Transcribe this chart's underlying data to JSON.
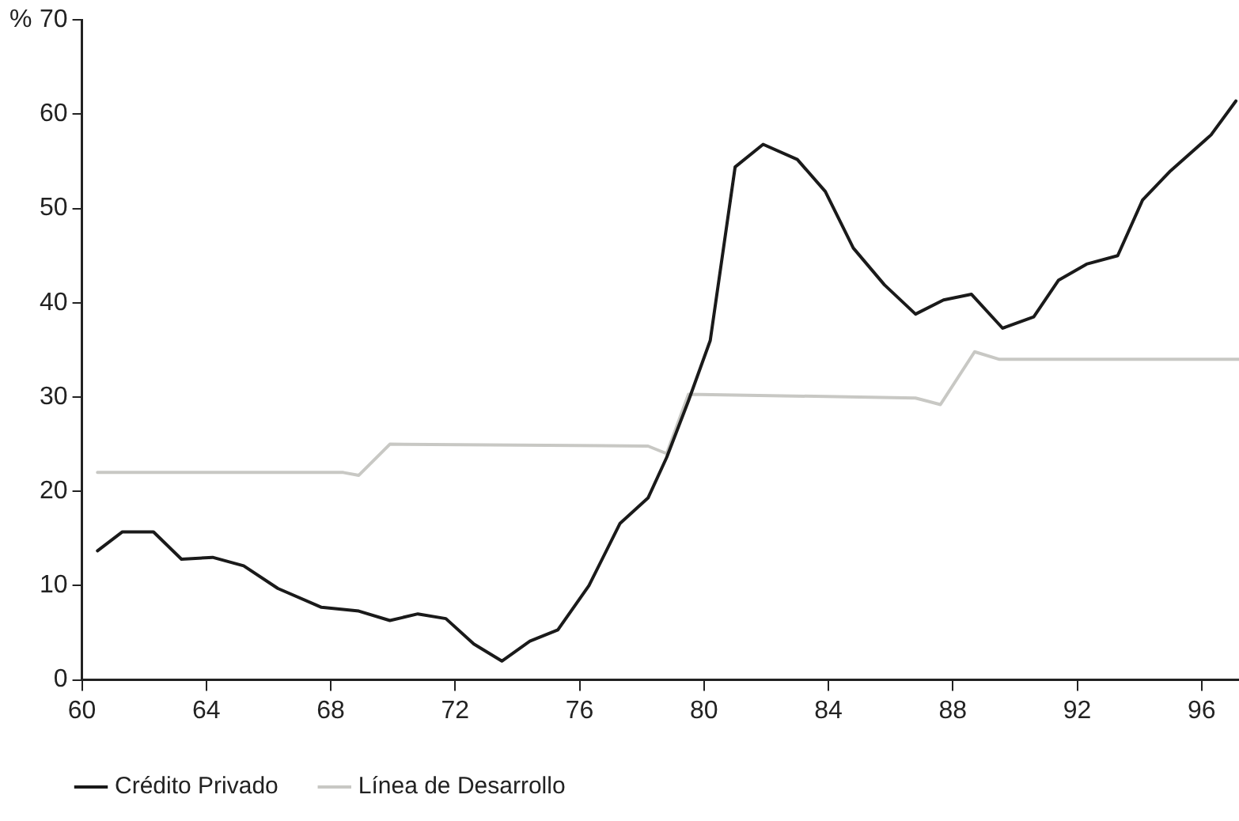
{
  "chart_data": {
    "type": "line",
    "ylabel": "%",
    "xlim": [
      60,
      97.2
    ],
    "xticks": [
      60,
      64,
      68,
      72,
      76,
      80,
      84,
      88,
      92,
      96
    ],
    "ylim": [
      0,
      70
    ],
    "yticks": [
      0,
      10,
      20,
      30,
      40,
      50,
      60,
      70
    ],
    "grid": false,
    "legend": "bottom left",
    "marker": "none",
    "line_style": "solid",
    "series": [
      {
        "name": "Crédito Privado",
        "color": "#1a1a1a",
        "x": [
          60.5,
          61.3,
          62.3,
          63.2,
          64.2,
          65.2,
          66.3,
          67.7,
          68.9,
          69.9,
          70.8,
          71.7,
          72.6,
          73.5,
          74.4,
          75.3,
          76.3,
          77.3,
          78.2,
          78.8,
          79.5,
          80.2,
          81.0,
          81.9,
          83.0,
          83.9,
          84.8,
          85.8,
          86.8,
          87.7,
          88.6,
          89.6,
          90.6,
          91.4,
          92.3,
          93.3,
          94.1,
          95.0,
          96.3,
          97.1
        ],
        "values": [
          13.7,
          15.7,
          15.7,
          12.8,
          13,
          12.1,
          9.7,
          7.7,
          7.3,
          6.3,
          7,
          6.5,
          3.8,
          2,
          4.1,
          5.3,
          10,
          16.6,
          19.3,
          23.6,
          29.6,
          36,
          54.4,
          56.8,
          55.2,
          51.8,
          45.8,
          41.9,
          38.8,
          40.3,
          40.9,
          37.3,
          38.5,
          42.4,
          44.1,
          45,
          50.9,
          54,
          57.8,
          61.4
        ]
      },
      {
        "name": "Línea de Desarrollo",
        "color": "#c8c8c4",
        "x": [
          60.5,
          68.4,
          68.9,
          69.9,
          78.2,
          78.8,
          79.5,
          86.8,
          87.6,
          88.7,
          89.5,
          97.2
        ],
        "values": [
          22,
          22,
          21.7,
          25,
          24.8,
          24,
          30.3,
          29.9,
          29.2,
          34.8,
          34,
          34
        ]
      }
    ]
  }
}
